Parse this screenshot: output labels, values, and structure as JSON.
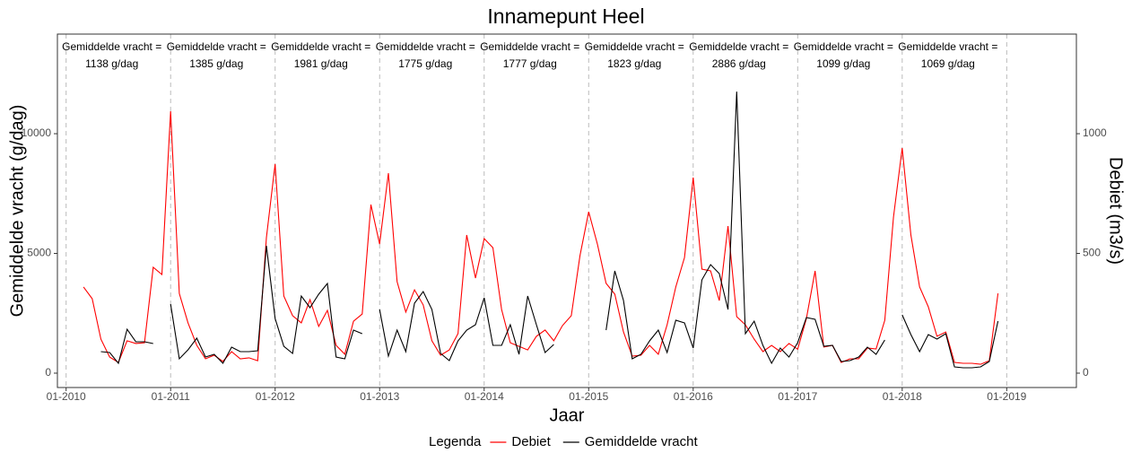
{
  "chart_data": {
    "type": "line",
    "title": "Innamepunt Heel",
    "xlabel": "Jaar",
    "ylabel": "Gemiddelde vracht (g/dag)",
    "y2label": "Debiet (m3/s)",
    "legend_title": "Legenda",
    "legend": "bottom",
    "x": [
      "03-2010",
      "04-2010",
      "05-2010",
      "06-2010",
      "07-2010",
      "08-2010",
      "09-2010",
      "10-2010",
      "11-2010",
      "12-2010",
      "01-2011",
      "02-2011",
      "03-2011",
      "04-2011",
      "05-2011",
      "06-2011",
      "07-2011",
      "08-2011",
      "09-2011",
      "10-2011",
      "11-2011",
      "12-2011",
      "01-2012",
      "02-2012",
      "03-2012",
      "04-2012",
      "05-2012",
      "06-2012",
      "07-2012",
      "08-2012",
      "09-2012",
      "10-2012",
      "11-2012",
      "12-2012",
      "01-2013",
      "02-2013",
      "03-2013",
      "04-2013",
      "05-2013",
      "06-2013",
      "07-2013",
      "08-2013",
      "09-2013",
      "10-2013",
      "11-2013",
      "12-2013",
      "01-2014",
      "02-2014",
      "03-2014",
      "04-2014",
      "05-2014",
      "06-2014",
      "07-2014",
      "08-2014",
      "09-2014",
      "10-2014",
      "11-2014",
      "12-2014",
      "01-2015",
      "02-2015",
      "03-2015",
      "04-2015",
      "05-2015",
      "06-2015",
      "07-2015",
      "08-2015",
      "09-2015",
      "10-2015",
      "11-2015",
      "12-2015",
      "01-2016",
      "02-2016",
      "03-2016",
      "04-2016",
      "05-2016",
      "06-2016",
      "07-2016",
      "08-2016",
      "09-2016",
      "10-2016",
      "11-2016",
      "12-2016",
      "01-2017",
      "02-2017",
      "03-2017",
      "04-2017",
      "05-2017",
      "06-2017",
      "07-2017",
      "08-2017",
      "09-2017",
      "10-2017",
      "11-2017",
      "12-2017",
      "01-2018",
      "02-2018",
      "03-2018",
      "04-2018",
      "05-2018",
      "06-2018",
      "07-2018",
      "08-2018",
      "09-2018",
      "10-2018",
      "11-2018",
      "12-2018"
    ],
    "series": [
      {
        "name": "Debiet",
        "color": "#ff0000",
        "axis": "y2",
        "values": [
          360,
          311,
          142,
          67,
          45,
          135,
          124,
          127,
          442,
          412,
          1094,
          333,
          210,
          116,
          60,
          75,
          49,
          90,
          60,
          64,
          52,
          566,
          873,
          322,
          240,
          210,
          307,
          195,
          262,
          116,
          79,
          217,
          247,
          704,
          539,
          835,
          382,
          255,
          348,
          285,
          135,
          75,
          97,
          165,
          577,
          397,
          562,
          524,
          266,
          127,
          112,
          97,
          154,
          180,
          135,
          199,
          240,
          491,
          674,
          539,
          375,
          330,
          172,
          71,
          75,
          116,
          79,
          202,
          360,
          483,
          817,
          434,
          427,
          303,
          614,
          236,
          202,
          142,
          90,
          116,
          90,
          124,
          100,
          228,
          427,
          109,
          116,
          45,
          60,
          60,
          105,
          101,
          221,
          652,
          940,
          577,
          360,
          277,
          154,
          172,
          45,
          41,
          41,
          37,
          52,
          333
        ]
      },
      {
        "name": "Gemiddelde vracht",
        "color": "#000000",
        "values": [
          null,
          null,
          900,
          860,
          410,
          1835,
          1310,
          1310,
          1236,
          null,
          2884,
          600,
          974,
          1460,
          674,
          786,
          412,
          1086,
          900,
          900,
          936,
          5318,
          2284,
          1124,
          824,
          3221,
          2734,
          3296,
          3745,
          674,
          600,
          1798,
          1648,
          null,
          2660,
          712,
          1798,
          900,
          2921,
          3408,
          2660,
          824,
          524,
          1348,
          1798,
          2022,
          3146,
          1161,
          1161,
          2022,
          786,
          3221,
          2022,
          860,
          1198,
          null,
          null,
          null,
          null,
          null,
          1798,
          4270,
          3034,
          600,
          786,
          1348,
          1798,
          860,
          2210,
          2097,
          1049,
          3895,
          4532,
          4157,
          2660,
          11760,
          1648,
          2172,
          1161,
          412,
          1049,
          674,
          1273,
          2322,
          2247,
          1124,
          1161,
          487,
          524,
          674,
          1086,
          786,
          1386,
          null,
          2434,
          1611,
          900,
          1611,
          1423,
          1648,
          262,
          225,
          225,
          262,
          487,
          2172
        ]
      }
    ],
    "xlim": [
      "12-2009",
      "09-2019"
    ],
    "xticks": [
      "01-2010",
      "01-2011",
      "01-2012",
      "01-2013",
      "01-2014",
      "01-2015",
      "01-2016",
      "01-2017",
      "01-2018",
      "01-2019"
    ],
    "ylim": [
      -600,
      14160
    ],
    "yticks": [
      0,
      5000,
      10000
    ],
    "y2lim": [
      -60,
      1416
    ],
    "y2ticks": [
      0,
      500,
      1000
    ],
    "grid": true,
    "annotations": [
      [
        "Gemiddelde vracht =",
        "1138 g/dag"
      ],
      [
        "Gemiddelde vracht =",
        "1385 g/dag"
      ],
      [
        "Gemiddelde vracht =",
        "1981 g/dag"
      ],
      [
        "Gemiddelde vracht =",
        "1775 g/dag"
      ],
      [
        "Gemiddelde vracht =",
        "1777 g/dag"
      ],
      [
        "Gemiddelde vracht =",
        "1823 g/dag"
      ],
      [
        "Gemiddelde vracht =",
        "2886 g/dag"
      ],
      [
        "Gemiddelde vracht =",
        "1099 g/dag"
      ],
      [
        "Gemiddelde vracht =",
        "1069 g/dag"
      ]
    ]
  }
}
